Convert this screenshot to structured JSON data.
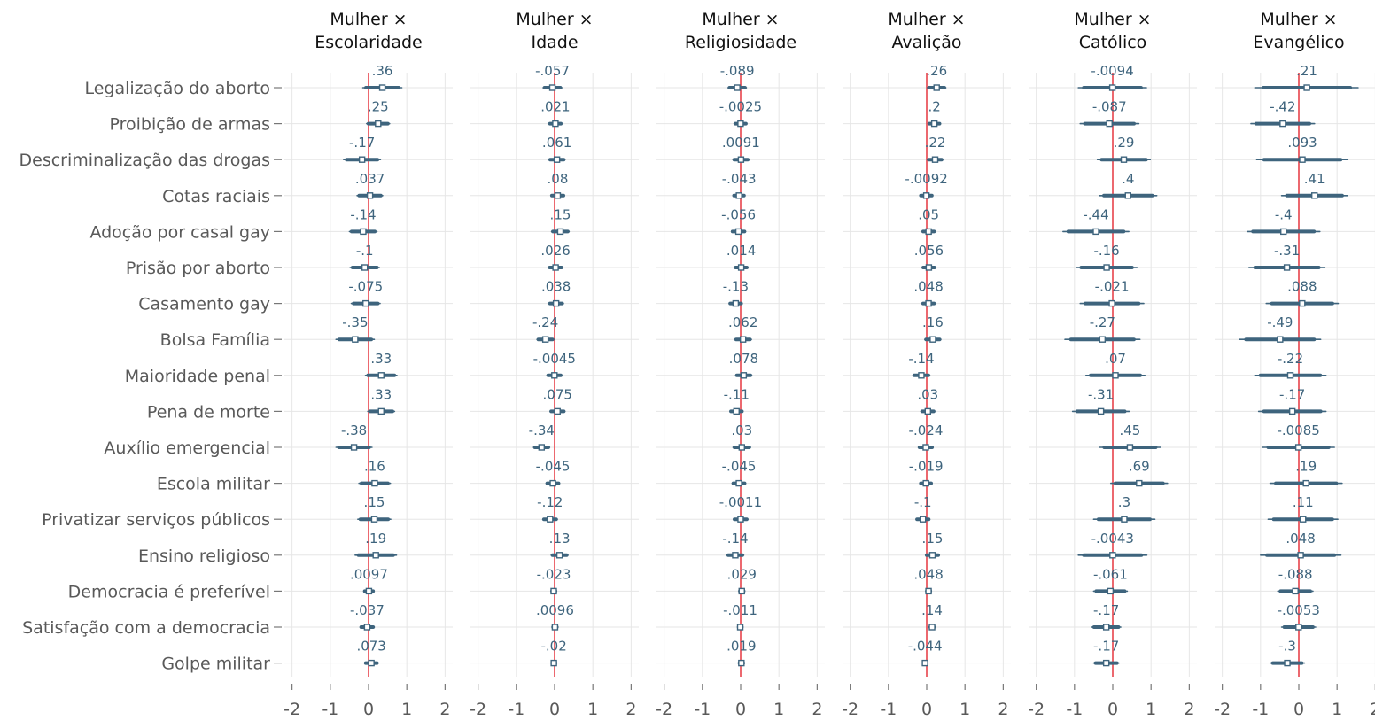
{
  "chart_data": {
    "type": "forest",
    "title": "",
    "xlabel": "",
    "ylabel": "",
    "xlim": [
      -2.2,
      2.2
    ],
    "xticks": [
      "-2",
      "-1",
      "0",
      "1",
      "2"
    ],
    "xtick_values": [
      -2,
      -1,
      0,
      1,
      2
    ],
    "reference_line": 0,
    "colors": {
      "marker": "#3e647d",
      "reference_line": "#e8434b",
      "grid": "#e6e6e6",
      "label": "#3e647d",
      "axis_text": "#595959"
    },
    "grid": true,
    "rows": [
      "Legalização do aborto",
      "Proibição de armas",
      "Descriminalização das drogas",
      "Cotas raciais",
      "Adoção por casal gay",
      "Prisão por aborto",
      "Casamento gay",
      "Bolsa Família",
      "Maioridade penal",
      "Pena de morte",
      "Auxílio emergencial",
      "Escola militar",
      "Privatizar serviços públicos",
      "Ensino religioso",
      "Democracia é preferível",
      "Satisfação com a democracia",
      "Golpe militar"
    ],
    "panels": [
      {
        "title_line1": "Mulher ×",
        "title_line2": "Escolaridade",
        "labels": [
          ".36",
          ".25",
          "-.17",
          ".037",
          "-.14",
          "-.1",
          "-.075",
          "-.35",
          ".33",
          ".33",
          "-.38",
          ".16",
          ".15",
          ".19",
          ".0097",
          "-.037",
          ".073"
        ],
        "values": [
          0.36,
          0.25,
          -0.17,
          0.037,
          -0.14,
          -0.1,
          -0.075,
          -0.35,
          0.33,
          0.33,
          -0.38,
          0.16,
          0.15,
          0.19,
          0.0097,
          -0.037,
          0.073
        ],
        "ci_lower": [
          -0.15,
          -0.05,
          -0.65,
          -0.3,
          -0.5,
          -0.48,
          -0.45,
          -0.85,
          -0.08,
          -0.02,
          -0.85,
          -0.25,
          -0.28,
          -0.35,
          -0.12,
          -0.22,
          -0.1
        ],
        "ci_upper": [
          0.87,
          0.55,
          0.31,
          0.37,
          0.22,
          0.28,
          0.3,
          0.15,
          0.74,
          0.68,
          0.09,
          0.57,
          0.58,
          0.73,
          0.14,
          0.15,
          0.25
        ]
      },
      {
        "title_line1": "Mulher ×",
        "title_line2": "Idade",
        "labels": [
          "-.057",
          ".021",
          ".061",
          ".08",
          ".15",
          ".026",
          ".038",
          "-.24",
          "-.0045",
          ".075",
          "-.34",
          "-.045",
          "-.12",
          ".13",
          "-.023",
          ".0096",
          "-.02"
        ],
        "values": [
          -0.057,
          0.021,
          0.061,
          0.08,
          0.15,
          0.026,
          0.038,
          -0.24,
          -0.0045,
          0.075,
          -0.34,
          -0.045,
          -0.12,
          0.13,
          -0.023,
          0.0096,
          -0.02
        ],
        "ci_lower": [
          -0.3,
          -0.15,
          -0.15,
          -0.1,
          -0.08,
          -0.16,
          -0.15,
          -0.46,
          -0.2,
          -0.12,
          -0.55,
          -0.22,
          -0.31,
          -0.09,
          -0.08,
          -0.05,
          -0.07
        ],
        "ci_upper": [
          0.19,
          0.19,
          0.27,
          0.26,
          0.38,
          0.21,
          0.23,
          -0.02,
          0.19,
          0.27,
          -0.13,
          0.13,
          0.07,
          0.35,
          0.03,
          0.07,
          0.03
        ]
      },
      {
        "title_line1": "Mulher ×",
        "title_line2": "Religiosidade",
        "labels": [
          "-.089",
          "-.0025",
          ".0091",
          "-.043",
          "-.056",
          ".014",
          "-.13",
          ".062",
          ".078",
          "-.11",
          ".03",
          "-.045",
          "-.0011",
          "-.14",
          ".029",
          "-.011",
          ".019"
        ],
        "values": [
          -0.089,
          -0.0025,
          0.0091,
          -0.043,
          -0.056,
          0.014,
          -0.13,
          0.062,
          0.078,
          -0.11,
          0.03,
          -0.045,
          -0.0011,
          -0.14,
          0.029,
          -0.011,
          0.019
        ],
        "ci_lower": [
          -0.33,
          -0.17,
          -0.2,
          -0.2,
          -0.24,
          -0.16,
          -0.3,
          -0.15,
          -0.13,
          -0.28,
          -0.2,
          -0.22,
          -0.19,
          -0.36,
          -0.03,
          -0.06,
          -0.04
        ],
        "ci_upper": [
          0.15,
          0.16,
          0.22,
          0.11,
          0.13,
          0.19,
          0.04,
          0.28,
          0.29,
          0.06,
          0.26,
          0.13,
          0.19,
          0.08,
          0.09,
          0.04,
          0.08
        ]
      },
      {
        "title_line1": "Mulher ×",
        "title_line2": "Avalição",
        "labels": [
          ".26",
          ".2",
          ".22",
          "-.0092",
          ".05",
          ".056",
          ".048",
          ".16",
          "-.14",
          ".03",
          "-.024",
          "-.019",
          "-.1",
          ".15",
          ".048",
          ".14",
          "-.044"
        ],
        "values": [
          0.26,
          0.2,
          0.22,
          -0.0092,
          0.05,
          0.056,
          0.048,
          0.16,
          -0.14,
          0.03,
          -0.024,
          -0.019,
          -0.1,
          0.15,
          0.048,
          0.14,
          -0.044
        ],
        "ci_lower": [
          0.02,
          0.04,
          0.02,
          -0.18,
          -0.12,
          -0.12,
          -0.12,
          -0.05,
          -0.36,
          -0.15,
          -0.22,
          -0.18,
          -0.28,
          -0.03,
          -0.01,
          0.08,
          -0.09
        ],
        "ci_upper": [
          0.5,
          0.36,
          0.42,
          0.16,
          0.22,
          0.23,
          0.22,
          0.37,
          0.08,
          0.21,
          0.17,
          0.14,
          0.08,
          0.33,
          0.1,
          0.2,
          0.0
        ]
      },
      {
        "title_line1": "Mulher ×",
        "title_line2": "Católico",
        "labels": [
          "-.0094",
          "-.087",
          ".29",
          ".4",
          "-.44",
          "-.16",
          "-.021",
          "-.27",
          ".07",
          "-.31",
          ".45",
          ".69",
          ".3",
          "-.0043",
          "-.061",
          "-.17",
          "-.17"
        ],
        "values": [
          -0.0094,
          -0.087,
          0.29,
          0.4,
          -0.44,
          -0.16,
          -0.021,
          -0.27,
          0.07,
          -0.31,
          0.45,
          0.69,
          0.3,
          -0.0043,
          -0.061,
          -0.17,
          -0.17
        ],
        "ci_lower": [
          -0.9,
          -0.85,
          -0.4,
          -0.35,
          -1.3,
          -0.95,
          -0.85,
          -1.25,
          -0.7,
          -1.05,
          -0.35,
          -0.05,
          -0.5,
          -0.9,
          -0.5,
          -0.55,
          -0.5
        ],
        "ci_upper": [
          0.88,
          0.68,
          0.98,
          1.15,
          0.42,
          0.63,
          0.81,
          0.71,
          0.84,
          0.43,
          1.25,
          1.43,
          1.1,
          0.89,
          0.38,
          0.21,
          0.16
        ]
      },
      {
        "title_line1": "Mulher ×",
        "title_line2": "Evangélico",
        "labels": [
          ".21",
          "-.42",
          ".093",
          ".41",
          "-.4",
          "-.31",
          ".088",
          "-.49",
          "-.22",
          "-.17",
          "-.0085",
          ".19",
          ".11",
          ".048",
          "-.088",
          "-.0053",
          "-.3"
        ],
        "values": [
          0.21,
          -0.42,
          0.093,
          0.41,
          -0.4,
          -0.31,
          0.088,
          -0.49,
          -0.22,
          -0.17,
          -0.0085,
          0.19,
          0.11,
          0.048,
          -0.088,
          -0.0053,
          -0.3
        ],
        "ci_lower": [
          -1.15,
          -1.25,
          -1.1,
          -0.45,
          -1.35,
          -1.3,
          -0.85,
          -1.55,
          -1.15,
          -1.05,
          -0.95,
          -0.75,
          -0.8,
          -1.0,
          -0.55,
          -0.45,
          -0.75
        ],
        "ci_upper": [
          1.55,
          0.41,
          1.28,
          1.27,
          0.55,
          0.68,
          1.03,
          0.57,
          0.71,
          0.71,
          0.93,
          1.13,
          1.02,
          1.1,
          0.37,
          0.44,
          0.15
        ]
      }
    ]
  }
}
